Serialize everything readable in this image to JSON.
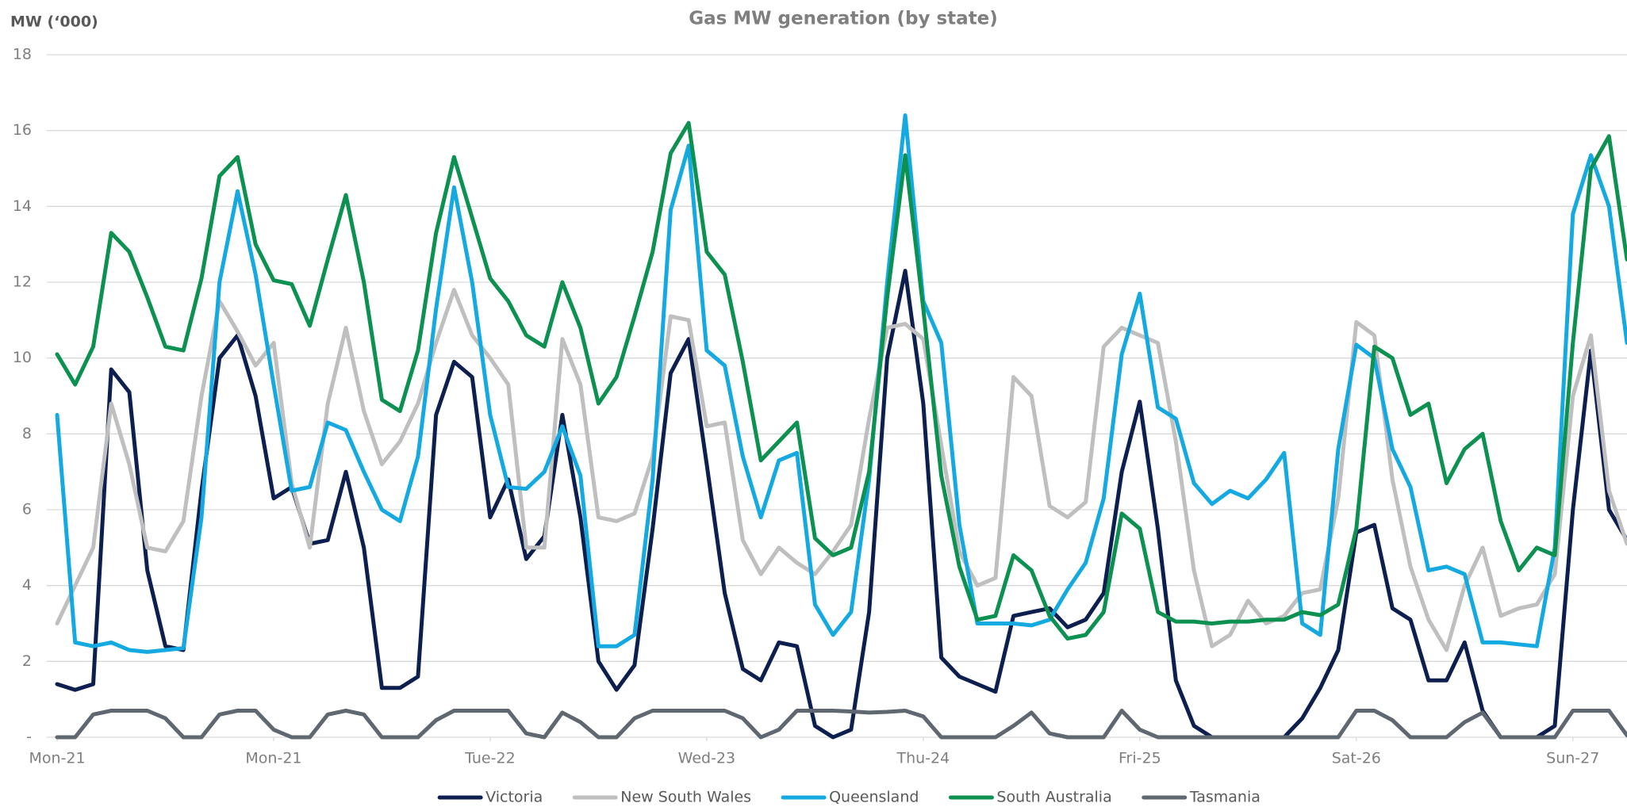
{
  "chart_data": {
    "type": "line",
    "title": "Gas MW generation (by state)",
    "y_label": "MW (‘000)",
    "x": [
      0,
      2,
      4,
      6,
      8,
      10,
      12,
      14,
      16,
      18,
      20,
      22,
      24,
      26,
      28,
      30,
      32,
      34,
      36,
      38,
      40,
      42,
      44,
      46,
      48,
      50,
      52,
      54,
      56,
      58,
      60,
      62,
      64,
      66,
      68,
      70,
      72,
      74,
      76,
      78,
      80,
      82,
      84,
      86,
      88,
      90,
      92,
      94,
      96,
      98,
      100,
      102,
      104,
      106,
      108,
      110,
      112,
      114,
      116,
      118,
      120,
      122,
      124,
      126,
      128,
      130,
      132,
      134,
      136,
      138,
      140,
      142,
      144,
      146,
      148,
      150,
      152,
      154,
      156,
      158,
      160,
      162,
      164,
      166,
      168,
      170,
      172,
      174
    ],
    "xlim": [
      0,
      174
    ],
    "xticks": [
      {
        "value": 0,
        "label": "Mon-21"
      },
      {
        "value": 24,
        "label": "Mon-21"
      },
      {
        "value": 48,
        "label": "Tue-22"
      },
      {
        "value": 72,
        "label": "Wed-23"
      },
      {
        "value": 96,
        "label": "Thu-24"
      },
      {
        "value": 120,
        "label": "Fri-25"
      },
      {
        "value": 144,
        "label": "Sat-26"
      },
      {
        "value": 168,
        "label": "Sun-27"
      }
    ],
    "ylim": [
      0,
      18
    ],
    "yticks": [
      {
        "value": 0,
        "label": "-"
      },
      2,
      4,
      6,
      8,
      10,
      12,
      14,
      16,
      18
    ],
    "grid": true,
    "legend": "bottom",
    "series": [
      {
        "name": "Victoria",
        "color": "#0d1f4f",
        "values": [
          1.4,
          1.25,
          1.4,
          9.7,
          9.1,
          4.4,
          2.4,
          2.3,
          6.5,
          10,
          10.6,
          9,
          6.3,
          6.6,
          5.1,
          5.2,
          7,
          5,
          1.3,
          1.3,
          1.6,
          8.5,
          9.9,
          9.5,
          5.8,
          6.8,
          4.7,
          5.3,
          8.5,
          5.8,
          2,
          1.25,
          1.9,
          5.5,
          9.6,
          10.5,
          7.2,
          3.8,
          1.8,
          1.5,
          2.5,
          2.4,
          0.3,
          0,
          0.2,
          3.3,
          10,
          12.3,
          8.8,
          2.1,
          1.6,
          1.4,
          1.2,
          3.2,
          3.3,
          3.4,
          2.9,
          3.1,
          3.8,
          7,
          8.85,
          5.5,
          1.5,
          0.3,
          0,
          0,
          0,
          0,
          0,
          0.5,
          1.3,
          2.3,
          5.4,
          5.6,
          3.4,
          3.1,
          1.5,
          1.5,
          2.5,
          0.7,
          0,
          0,
          0,
          0.3,
          6,
          10.2,
          6,
          5.2
        ]
      },
      {
        "name": "New South Wales",
        "color": "#bfbfbf",
        "values": [
          3,
          4,
          5,
          8.8,
          7.2,
          5,
          4.9,
          5.7,
          9,
          11.5,
          10.7,
          9.8,
          10.4,
          6.7,
          5,
          8.8,
          10.8,
          8.6,
          7.2,
          7.8,
          8.8,
          10.4,
          11.8,
          10.6,
          10,
          9.3,
          5,
          5,
          10.5,
          9.3,
          5.8,
          5.7,
          5.9,
          7.4,
          11.1,
          11,
          8.2,
          8.3,
          5.2,
          4.3,
          5,
          4.6,
          4.3,
          4.9,
          5.6,
          8.4,
          10.8,
          10.9,
          10.5,
          7.7,
          4.9,
          4,
          4.2,
          9.5,
          9,
          6.1,
          5.8,
          6.2,
          10.3,
          10.8,
          10.6,
          10.4,
          7.8,
          4.4,
          2.4,
          2.7,
          3.6,
          3,
          3.2,
          3.8,
          3.9,
          6.3,
          10.95,
          10.6,
          6.8,
          4.5,
          3.1,
          2.3,
          4,
          5,
          3.2,
          3.4,
          3.5,
          4.3,
          9,
          10.6,
          6.5,
          5.1
        ]
      },
      {
        "name": "Queensland",
        "color": "#14a9e1",
        "values": [
          8.5,
          2.5,
          2.4,
          2.5,
          2.3,
          2.25,
          2.3,
          2.35,
          5.8,
          12,
          14.4,
          12.2,
          9.3,
          6.5,
          6.6,
          8.3,
          8.1,
          7,
          6,
          5.7,
          7.4,
          11.3,
          14.5,
          12,
          8.5,
          6.6,
          6.55,
          7,
          8.2,
          6.9,
          2.4,
          2.4,
          2.7,
          6.8,
          13.9,
          15.6,
          10.2,
          9.8,
          7.4,
          5.8,
          7.3,
          7.5,
          3.5,
          2.7,
          3.3,
          6.8,
          12,
          16.4,
          11.5,
          10.4,
          5.6,
          3,
          3,
          3,
          2.95,
          3.1,
          3.9,
          4.6,
          6.3,
          10.1,
          11.7,
          8.7,
          8.4,
          6.7,
          6.15,
          6.5,
          6.3,
          6.8,
          7.5,
          3,
          2.7,
          7.6,
          10.35,
          10,
          7.6,
          6.6,
          4.4,
          4.5,
          4.3,
          2.5,
          2.5,
          2.45,
          2.4,
          5,
          13.8,
          15.35,
          14,
          10.4
        ]
      },
      {
        "name": "South Australia",
        "color": "#0c9150",
        "values": [
          10.1,
          9.3,
          10.3,
          13.3,
          12.8,
          11.6,
          10.3,
          10.2,
          12.1,
          14.8,
          15.3,
          13,
          12.05,
          11.95,
          10.85,
          12.6,
          14.3,
          12,
          8.9,
          8.6,
          10.2,
          13.3,
          15.3,
          13.7,
          12.1,
          11.5,
          10.6,
          10.3,
          12,
          10.8,
          8.8,
          9.5,
          11.1,
          12.8,
          15.4,
          16.2,
          12.8,
          12.2,
          9.9,
          7.3,
          7.8,
          8.3,
          5.25,
          4.8,
          5,
          7,
          11.6,
          15.35,
          11.3,
          6.9,
          4.5,
          3.1,
          3.2,
          4.8,
          4.4,
          3.2,
          2.6,
          2.7,
          3.3,
          5.9,
          5.5,
          3.3,
          3.05,
          3.05,
          3,
          3.05,
          3.05,
          3.1,
          3.1,
          3.3,
          3.22,
          3.5,
          5.5,
          10.3,
          10,
          8.5,
          8.8,
          6.7,
          7.6,
          8,
          5.7,
          4.4,
          5,
          4.8,
          10.4,
          15,
          15.85,
          12.6
        ]
      },
      {
        "name": "Tasmania",
        "color": "#5f6870",
        "values": [
          0,
          0,
          0.6,
          0.7,
          0.7,
          0.7,
          0.5,
          0,
          0,
          0.6,
          0.7,
          0.7,
          0.2,
          0,
          0,
          0.6,
          0.7,
          0.6,
          0,
          0,
          0,
          0.45,
          0.7,
          0.7,
          0.7,
          0.7,
          0.1,
          0,
          0.65,
          0.4,
          0,
          0,
          0.5,
          0.7,
          0.7,
          0.7,
          0.7,
          0.7,
          0.5,
          0,
          0.2,
          0.7,
          0.7,
          0.7,
          0.68,
          0.65,
          0.67,
          0.7,
          0.55,
          0,
          0,
          0,
          0,
          0.3,
          0.65,
          0.1,
          0,
          0,
          0,
          0.7,
          0.2,
          0,
          0,
          0,
          0,
          0,
          0,
          0,
          0,
          0,
          0,
          0,
          0.7,
          0.7,
          0.45,
          0,
          0,
          0,
          0.4,
          0.65,
          0,
          0,
          0,
          0,
          0.7,
          0.7,
          0.7,
          0.05
        ]
      }
    ]
  }
}
